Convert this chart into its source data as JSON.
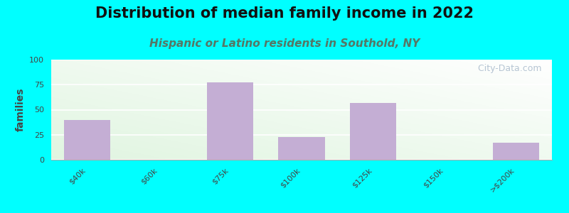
{
  "title": "Distribution of median family income in 2022",
  "subtitle": "Hispanic or Latino residents in Southold, NY",
  "ylabel": "families",
  "categories": [
    "$40k",
    "$60k",
    "$75k",
    "$100k",
    "$125k",
    "$150k",
    ">$200k"
  ],
  "values": [
    40,
    0,
    77,
    23,
    57,
    0,
    17
  ],
  "bar_color": "#c4aed4",
  "ylim": [
    0,
    100
  ],
  "yticks": [
    0,
    25,
    50,
    75,
    100
  ],
  "background_color": "#00ffff",
  "plot_bg_color_topleft": "#ddeedd",
  "plot_bg_color_topright": "#eef5f5",
  "plot_bg_color_bottomleft": "#eef5f5",
  "plot_bg_color_bottomright": "#ffffff",
  "title_fontsize": 15,
  "title_color": "#111111",
  "subtitle_fontsize": 11,
  "subtitle_color": "#557766",
  "ylabel_fontsize": 10,
  "tick_fontsize": 8,
  "watermark_text": "  City-Data.com",
  "watermark_color": "#aabbcc",
  "grid_color": "#dddddd"
}
